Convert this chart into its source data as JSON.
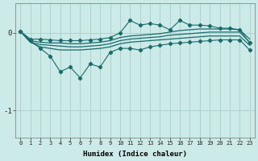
{
  "xlabel": "Humidex (Indice chaleur)",
  "bg_color": "#cceae7",
  "line_color": "#1a6b6b",
  "grid_color": "#aad4d0",
  "x": [
    0,
    1,
    2,
    3,
    4,
    5,
    6,
    7,
    8,
    9,
    10,
    11,
    12,
    13,
    14,
    15,
    16,
    17,
    18,
    19,
    20,
    21,
    22,
    23
  ],
  "line_jagged": [
    0.02,
    -0.1,
    -0.2,
    -0.3,
    -0.5,
    -0.44,
    -0.58,
    -0.4,
    -0.44,
    -0.25,
    -0.2,
    -0.2,
    -0.22,
    -0.18,
    -0.16,
    -0.14,
    -0.13,
    -0.12,
    -0.11,
    -0.1,
    -0.09,
    -0.09,
    -0.09,
    -0.22
  ],
  "line_upper": [
    0.02,
    -0.08,
    -0.08,
    -0.09,
    -0.1,
    -0.1,
    -0.1,
    -0.09,
    -0.08,
    -0.06,
    0.0,
    0.16,
    0.1,
    0.12,
    0.1,
    0.04,
    0.16,
    0.1,
    0.1,
    0.09,
    0.06,
    0.06,
    0.04,
    -0.13
  ],
  "line_mid1": [
    0.02,
    -0.1,
    -0.12,
    -0.13,
    -0.13,
    -0.14,
    -0.14,
    -0.13,
    -0.12,
    -0.1,
    -0.06,
    -0.04,
    -0.03,
    -0.02,
    -0.01,
    0.01,
    0.03,
    0.04,
    0.05,
    0.05,
    0.05,
    0.05,
    0.04,
    -0.08
  ],
  "line_mid2": [
    0.02,
    -0.12,
    -0.15,
    -0.16,
    -0.17,
    -0.18,
    -0.18,
    -0.17,
    -0.16,
    -0.14,
    -0.1,
    -0.08,
    -0.07,
    -0.06,
    -0.05,
    -0.03,
    -0.02,
    -0.01,
    0.0,
    0.01,
    0.01,
    0.01,
    0.01,
    -0.12
  ],
  "line_lower": [
    0.02,
    -0.12,
    -0.18,
    -0.2,
    -0.22,
    -0.22,
    -0.22,
    -0.21,
    -0.2,
    -0.18,
    -0.14,
    -0.12,
    -0.11,
    -0.1,
    -0.09,
    -0.08,
    -0.07,
    -0.06,
    -0.05,
    -0.04,
    -0.04,
    -0.04,
    -0.04,
    -0.16
  ],
  "ylim": [
    -1.35,
    0.38
  ],
  "yticks": [
    -1.0,
    0.0
  ],
  "ytick_labels": [
    "-1",
    "0"
  ],
  "xlim": [
    -0.5,
    23.5
  ]
}
